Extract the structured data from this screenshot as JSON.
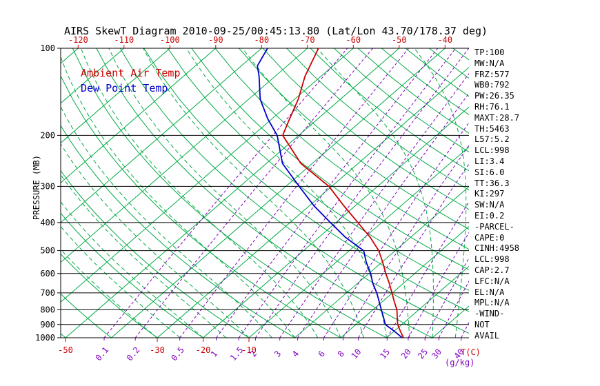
{
  "title": "AIRS SkewT Diagram 2010-09-25/00:45:13.80 (Lat/Lon 43.70/178.37 deg)",
  "legend": {
    "ambient": "Ambient Air Temp",
    "dew_point": "Dew Point Temp"
  },
  "axes": {
    "y_label": "PRESSURE (MB)",
    "x_unit_label": "T(C)",
    "mixing_unit_label": "(g/kg)"
  },
  "stats": [
    "TP:100",
    "MW:N/A",
    "FRZ:577",
    "WB0:792",
    "PW:26.35",
    "RH:76.1",
    "MAXT:28.7",
    "TH:5463",
    "L57:5.2",
    "LCL:998",
    "LI:3.4",
    "SI:6.0",
    "TT:36.3",
    "KI:297",
    "SW:N/A",
    "EI:0.2",
    "-PARCEL-",
    "CAPE:0",
    "CINH:4958",
    "LCL:998",
    "CAP:2.7",
    "LFC:N/A",
    "EL:N/A",
    "MPL:N/A",
    "-WIND-",
    "NOT",
    "AVAIL"
  ],
  "colors": {
    "red": "#cc0000",
    "blue": "#0000cc",
    "green": "#00aa44",
    "purple": "#8000c0",
    "black": "#000000"
  },
  "chart_data": {
    "type": "line",
    "title": "AIRS SkewT Diagram 2010-09-25/00:45:13.80 (Lat/Lon 43.70/178.37 deg)",
    "ylabel": "PRESSURE (MB)",
    "xlabel": "T(C)",
    "y_scale": "log",
    "ylim": [
      100,
      1000
    ],
    "pressure_levels": [
      100,
      200,
      300,
      400,
      500,
      600,
      700,
      800,
      900,
      1000
    ],
    "top_temp_labels": [
      -120,
      -110,
      -100,
      -90,
      -80,
      -70,
      -60,
      -50,
      -40
    ],
    "bottom_temp_labels": [
      -50,
      -30,
      -20,
      -10
    ],
    "mixing_ratio_labels": [
      0.1,
      0.2,
      0.5,
      1,
      1.5,
      2,
      3,
      4,
      6,
      8,
      10,
      15,
      20,
      25,
      30,
      40
    ],
    "series": [
      {
        "name": "Ambient Air Temp",
        "color": "#cc0000",
        "points": [
          {
            "p": 100,
            "t": -67.6
          },
          {
            "p": 125,
            "t": -63.5
          },
          {
            "p": 150,
            "t": -59.2
          },
          {
            "p": 175,
            "t": -56.2
          },
          {
            "p": 200,
            "t": -53.5
          },
          {
            "p": 250,
            "t": -42.5
          },
          {
            "p": 300,
            "t": -30.6
          },
          {
            "p": 350,
            "t": -22.5
          },
          {
            "p": 400,
            "t": -15.2
          },
          {
            "p": 450,
            "t": -8.8
          },
          {
            "p": 500,
            "t": -3.6
          },
          {
            "p": 550,
            "t": 0.3
          },
          {
            "p": 600,
            "t": 3.7
          },
          {
            "p": 650,
            "t": 7.0
          },
          {
            "p": 700,
            "t": 9.9
          },
          {
            "p": 750,
            "t": 12.6
          },
          {
            "p": 800,
            "t": 15.2
          },
          {
            "p": 850,
            "t": 17.2
          },
          {
            "p": 900,
            "t": 19.1
          },
          {
            "p": 950,
            "t": 21.4
          },
          {
            "p": 1000,
            "t": 23.7
          }
        ]
      },
      {
        "name": "Dew Point Temp",
        "color": "#0000cc",
        "points": [
          {
            "p": 100,
            "t": -78.7
          },
          {
            "p": 115,
            "t": -76.5
          },
          {
            "p": 125,
            "t": -73.5
          },
          {
            "p": 150,
            "t": -67.5
          },
          {
            "p": 175,
            "t": -61.0
          },
          {
            "p": 200,
            "t": -54.7
          },
          {
            "p": 250,
            "t": -46.5
          },
          {
            "p": 300,
            "t": -37.1
          },
          {
            "p": 350,
            "t": -29.0
          },
          {
            "p": 400,
            "t": -21.2
          },
          {
            "p": 450,
            "t": -14.2
          },
          {
            "p": 500,
            "t": -6.9
          },
          {
            "p": 550,
            "t": -3.3
          },
          {
            "p": 600,
            "t": 0.4
          },
          {
            "p": 650,
            "t": 3.4
          },
          {
            "p": 700,
            "t": 6.6
          },
          {
            "p": 750,
            "t": 9.3
          },
          {
            "p": 800,
            "t": 11.8
          },
          {
            "p": 850,
            "t": 14.2
          },
          {
            "p": 900,
            "t": 16.4
          },
          {
            "p": 950,
            "t": 20.1
          },
          {
            "p": 1000,
            "t": 23.4
          }
        ]
      }
    ]
  }
}
